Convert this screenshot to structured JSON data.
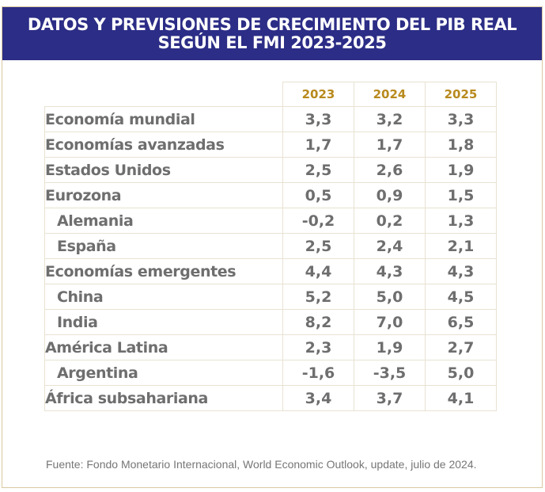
{
  "header": {
    "title_line1": "DATOS Y PREVISIONES DE CRECIMIENTO DEL PIB REAL",
    "title_line2": "SEGÚN EL FMI 2023-2025"
  },
  "chart_data": {
    "type": "table",
    "columns": [
      "2023",
      "2024",
      "2025"
    ],
    "rows": [
      {
        "label": "Economía mundial",
        "indent": false,
        "values": [
          "3,3",
          "3,2",
          "3,3"
        ]
      },
      {
        "label": "Economías avanzadas",
        "indent": false,
        "values": [
          "1,7",
          "1,7",
          "1,8"
        ]
      },
      {
        "label": "Estados Unidos",
        "indent": false,
        "values": [
          "2,5",
          "2,6",
          "1,9"
        ]
      },
      {
        "label": "Eurozona",
        "indent": false,
        "values": [
          "0,5",
          "0,9",
          "1,5"
        ]
      },
      {
        "label": "Alemania",
        "indent": true,
        "values": [
          "-0,2",
          "0,2",
          "1,3"
        ]
      },
      {
        "label": "España",
        "indent": true,
        "values": [
          "2,5",
          "2,4",
          "2,1"
        ]
      },
      {
        "label": "Economías emergentes",
        "indent": false,
        "values": [
          "4,4",
          "4,3",
          "4,3"
        ]
      },
      {
        "label": "China",
        "indent": true,
        "values": [
          "5,2",
          "5,0",
          "4,5"
        ]
      },
      {
        "label": "India",
        "indent": true,
        "values": [
          "8,2",
          "7,0",
          "6,5"
        ]
      },
      {
        "label": "América Latina",
        "indent": false,
        "values": [
          "2,3",
          "1,9",
          "2,7"
        ]
      },
      {
        "label": "Argentina",
        "indent": true,
        "values": [
          "-1,6",
          "-3,5",
          "5,0"
        ]
      },
      {
        "label": "África subsahariana",
        "indent": false,
        "values": [
          "3,4",
          "3,7",
          "4,1"
        ]
      }
    ]
  },
  "footer": {
    "source": "Fuente: Fondo Monetario Internacional, World Economic Outlook, update, julio de 2024."
  },
  "colors": {
    "banner": "#2c2d86",
    "year_header": "#b88a1e",
    "text": "#6e6e6e",
    "frame": "#d9c9a0"
  }
}
